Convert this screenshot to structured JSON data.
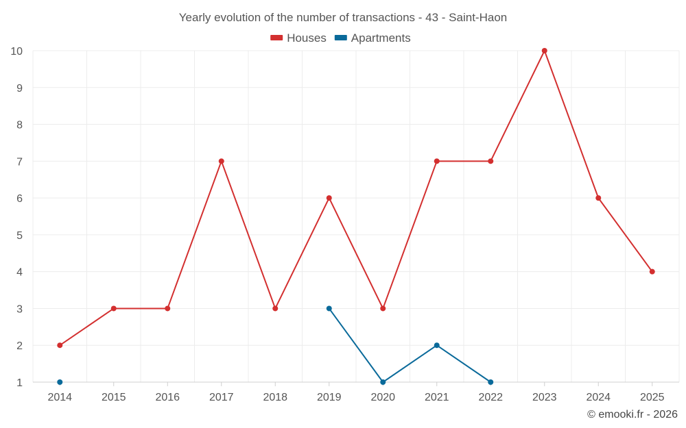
{
  "chart_data": {
    "type": "line",
    "title": "Yearly evolution of the number of transactions - 43 - Saint-Haon",
    "x": [
      "2014",
      "2015",
      "2016",
      "2017",
      "2018",
      "2019",
      "2020",
      "2021",
      "2022",
      "2023",
      "2024",
      "2025"
    ],
    "ylim": [
      1,
      10
    ],
    "yticks": [
      "1",
      "2",
      "3",
      "4",
      "5",
      "6",
      "7",
      "8",
      "9",
      "10"
    ],
    "grid": true,
    "legend_position": "top-center",
    "series": [
      {
        "name": "Houses",
        "color": "#d32f2f",
        "values": [
          2,
          3,
          3,
          7,
          3,
          6,
          3,
          7,
          7,
          10,
          6,
          4
        ]
      },
      {
        "name": "Apartments",
        "color": "#0a6a9a",
        "values": [
          1,
          null,
          null,
          null,
          null,
          3,
          1,
          2,
          1,
          null,
          null,
          null
        ]
      }
    ]
  },
  "credit": "© emooki.fr - 2026"
}
